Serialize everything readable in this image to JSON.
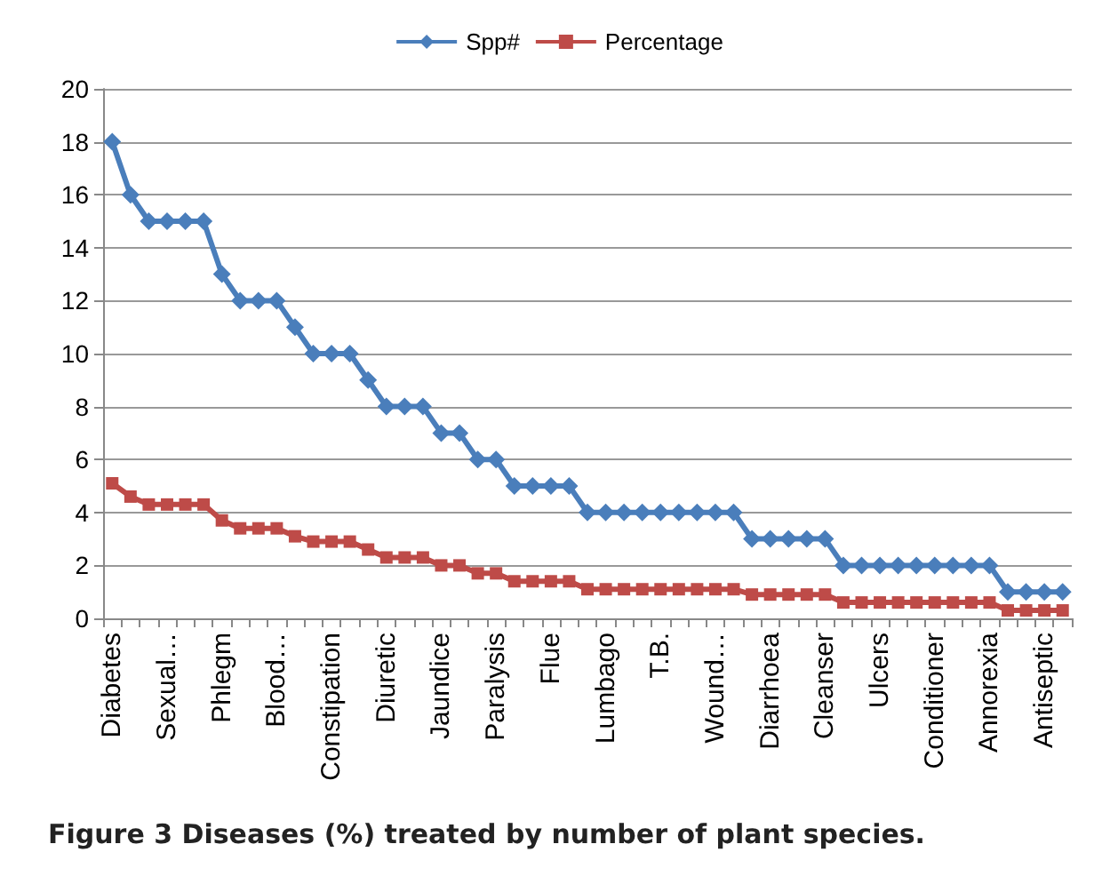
{
  "chart_data": {
    "type": "line",
    "title": "Figure 3 Diseases (%) treated by number of plant species.",
    "categories": [
      "Diabetes",
      null,
      null,
      "Sexual…",
      null,
      null,
      "Phlegm",
      null,
      null,
      "Blood…",
      null,
      null,
      "Constipation",
      null,
      null,
      "Diuretic",
      null,
      null,
      "Jaundice",
      null,
      null,
      "Paralysis",
      null,
      null,
      "Flue",
      null,
      null,
      "Lumbago",
      null,
      null,
      "T.B.",
      null,
      null,
      "Wound…",
      null,
      null,
      "Diarrhoea",
      null,
      null,
      "Cleanser",
      null,
      null,
      "Ulcers",
      null,
      null,
      "Conditioner",
      null,
      null,
      "Annorexia",
      null,
      null,
      "Antiseptic",
      null
    ],
    "series": [
      {
        "name": "Spp#",
        "color": "#4a7ebb",
        "marker": "diamond",
        "values": [
          18,
          16,
          15,
          15,
          15,
          15,
          13,
          12,
          12,
          12,
          11,
          10,
          10,
          10,
          9,
          8,
          8,
          8,
          7,
          7,
          6,
          6,
          5,
          5,
          5,
          5,
          4,
          4,
          4,
          4,
          4,
          4,
          4,
          4,
          4,
          3,
          3,
          3,
          3,
          3,
          2,
          2,
          2,
          2,
          2,
          2,
          2,
          2,
          2,
          1,
          1,
          1,
          1
        ]
      },
      {
        "name": "Percentage",
        "color": "#be4b48",
        "marker": "square",
        "values": [
          5.1,
          4.6,
          4.3,
          4.3,
          4.3,
          4.3,
          3.7,
          3.4,
          3.4,
          3.4,
          3.1,
          2.9,
          2.9,
          2.9,
          2.6,
          2.3,
          2.3,
          2.3,
          2.0,
          2.0,
          1.7,
          1.7,
          1.4,
          1.4,
          1.4,
          1.4,
          1.1,
          1.1,
          1.1,
          1.1,
          1.1,
          1.1,
          1.1,
          1.1,
          1.1,
          0.9,
          0.9,
          0.9,
          0.9,
          0.9,
          0.6,
          0.6,
          0.6,
          0.6,
          0.6,
          0.6,
          0.6,
          0.6,
          0.6,
          0.3,
          0.3,
          0.3,
          0.3
        ]
      }
    ],
    "ylim": [
      0,
      20
    ],
    "yticks": [
      0,
      2,
      4,
      6,
      8,
      10,
      12,
      14,
      16,
      18,
      20
    ],
    "grid": "y",
    "legend": "top",
    "line_style": "solid"
  }
}
